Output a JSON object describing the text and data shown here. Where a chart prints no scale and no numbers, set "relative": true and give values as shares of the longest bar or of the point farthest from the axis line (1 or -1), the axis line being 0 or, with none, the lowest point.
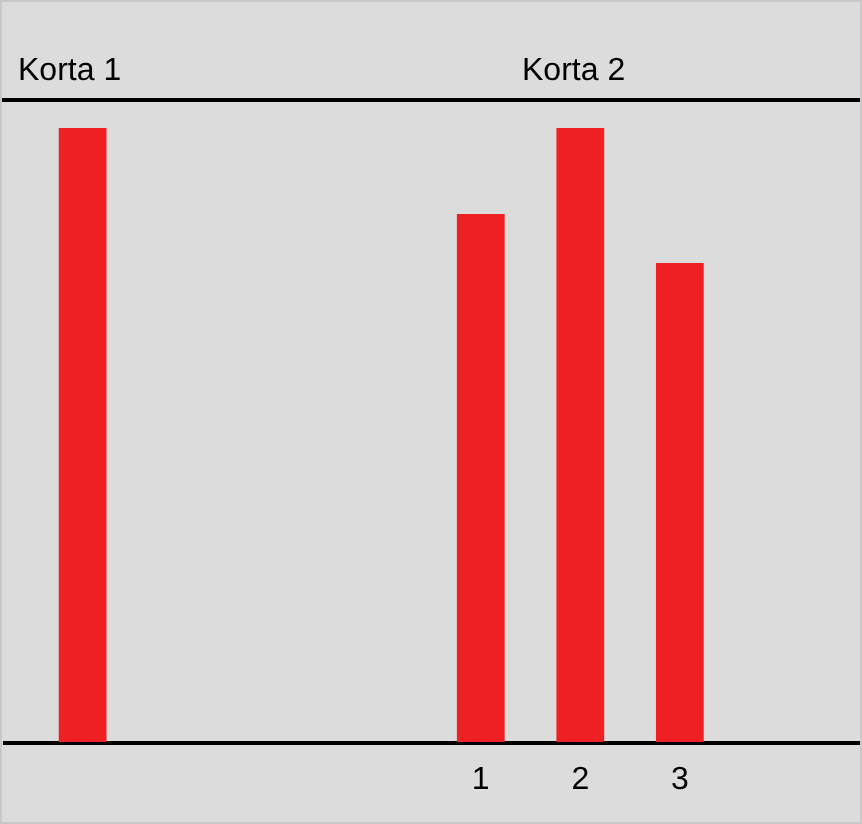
{
  "chart_data": {
    "type": "bar",
    "relative": true,
    "categories": [
      null,
      null,
      null,
      null,
      "1",
      "2",
      "3",
      null
    ],
    "values": [
      1,
      null,
      null,
      null,
      0.86,
      1,
      0.78,
      null
    ],
    "color": "#ee2024",
    "annotations": [
      "Korta 1",
      "Korta 2"
    ]
  }
}
